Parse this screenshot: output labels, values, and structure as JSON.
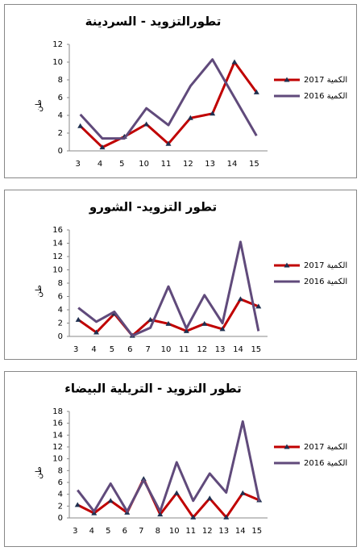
{
  "chart_data": [
    {
      "type": "line",
      "title": "تطورالتزويد - السردينة",
      "ylabel": "طن",
      "categories": [
        "3",
        "4",
        "5",
        "10",
        "11",
        "12",
        "13",
        "14",
        "15"
      ],
      "series": [
        {
          "name": "2017 الكمية",
          "color": "#c00000",
          "marker": "triangle",
          "values": [
            2.8,
            0.4,
            1.6,
            3.0,
            0.8,
            3.7,
            4.2,
            10.0,
            6.6
          ]
        },
        {
          "name": "2016 الكمية",
          "color": "#604a7b",
          "values": [
            4.1,
            1.4,
            1.4,
            4.8,
            2.9,
            7.3,
            10.3,
            6.0,
            1.7
          ]
        }
      ],
      "ylim": [
        0,
        12
      ],
      "yticks": [
        0,
        2,
        4,
        6,
        8,
        10,
        12
      ]
    },
    {
      "type": "line",
      "title": "تطور التزويد- الشورو",
      "ylabel": "طن",
      "categories": [
        "3",
        "4",
        "5",
        "6",
        "7",
        "10",
        "11",
        "12",
        "13",
        "14",
        "15"
      ],
      "series": [
        {
          "name": "2017 الكمية",
          "color": "#c00000",
          "marker": "triangle",
          "values": [
            2.5,
            0.6,
            3.4,
            0.1,
            2.5,
            1.9,
            0.8,
            1.9,
            1.1,
            5.6,
            4.5
          ]
        },
        {
          "name": "2016 الكمية",
          "color": "#604a7b",
          "values": [
            4.3,
            2.2,
            3.7,
            0.1,
            1.3,
            7.5,
            1.2,
            6.2,
            2.0,
            14.2,
            0.8
          ]
        }
      ],
      "ylim": [
        0,
        16
      ],
      "yticks": [
        0,
        2,
        4,
        6,
        8,
        10,
        12,
        14,
        16
      ]
    },
    {
      "type": "line",
      "title": "تطور التزويد - التريلية البيضاء",
      "ylabel": "طن",
      "categories": [
        "3",
        "4",
        "5",
        "6",
        "7",
        "8",
        "10",
        "11",
        "12",
        "13",
        "14",
        "15"
      ],
      "series": [
        {
          "name": "2017 الكمية",
          "color": "#c00000",
          "marker": "triangle",
          "values": [
            2.2,
            0.8,
            2.9,
            0.9,
            6.6,
            0.6,
            4.2,
            0.1,
            3.3,
            0.1,
            4.2,
            3.0
          ]
        },
        {
          "name": "2016 الكمية",
          "color": "#604a7b",
          "values": [
            4.7,
            1.1,
            5.8,
            1.1,
            6.4,
            1.1,
            9.4,
            2.9,
            7.5,
            4.3,
            16.3,
            2.8
          ]
        }
      ],
      "ylim": [
        0,
        18
      ],
      "yticks": [
        0,
        2,
        4,
        6,
        8,
        10,
        12,
        14,
        16,
        18
      ]
    }
  ]
}
